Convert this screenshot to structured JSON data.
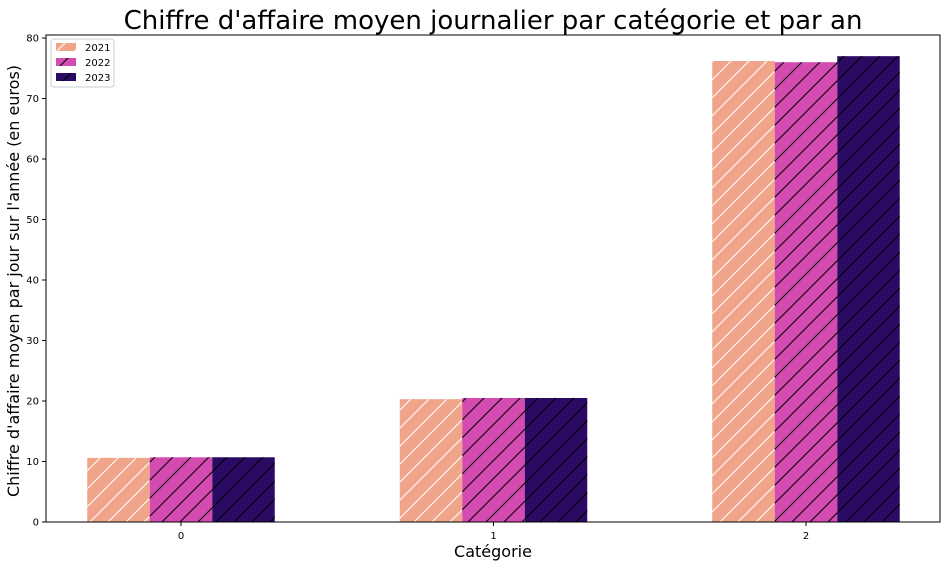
{
  "chart_data": {
    "type": "bar",
    "title": "Chiffre d'affaire moyen journalier par catégorie et par an",
    "xlabel": "Catégorie",
    "ylabel": "Chiffre d'affaire moyen par jour sur l'année (en euros)",
    "categories": [
      "0",
      "1",
      "2"
    ],
    "ylim": [
      0,
      80.5
    ],
    "yticks": [
      "0",
      "10",
      "20",
      "30",
      "40",
      "50",
      "60",
      "70",
      "80"
    ],
    "grid": false,
    "legend_position": "top-left",
    "series": [
      {
        "name": "2021",
        "values": [
          10.6,
          20.3,
          76.2
        ],
        "color": "#f0a48a",
        "hatch": "white"
      },
      {
        "name": "2022",
        "values": [
          10.7,
          20.5,
          76.0
        ],
        "color": "#d44bb0",
        "hatch": "black"
      },
      {
        "name": "2023",
        "values": [
          10.7,
          20.5,
          77.0
        ],
        "color": "#2b0a64",
        "hatch": "black"
      }
    ]
  }
}
